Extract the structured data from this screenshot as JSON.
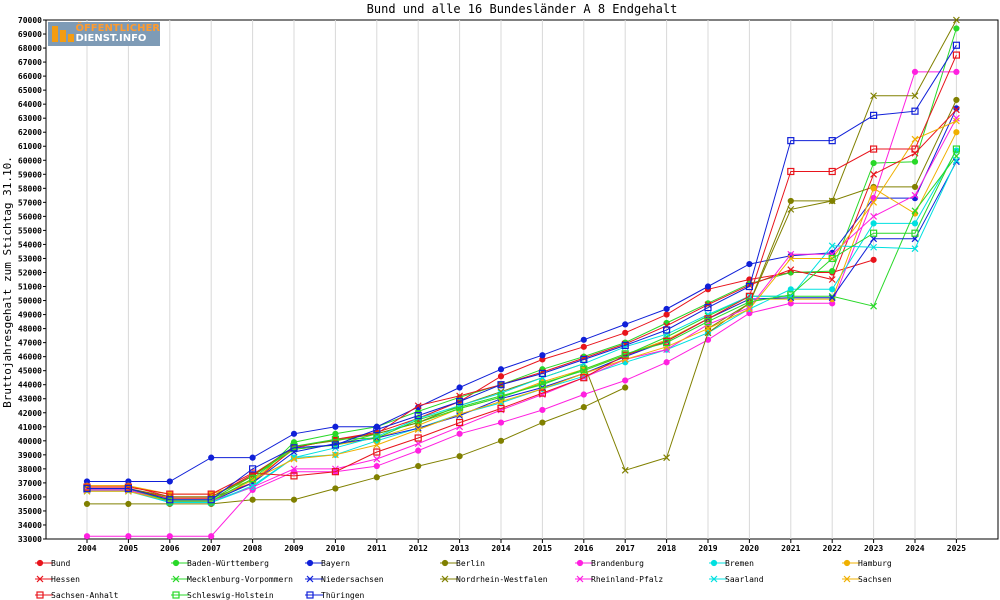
{
  "logo": {
    "line1": "ÖFFENTLICHER",
    "line2": "DIENST.INFO"
  },
  "chart_data": {
    "type": "line",
    "title": "Bund und alle 16 Bundesländer A 8 Endgehalt",
    "xlabel": "",
    "ylabel": "Bruttojahresgehalt zum Stichtag 31.10.",
    "ylim": [
      33000,
      70000
    ],
    "yticks": [
      33000,
      34000,
      35000,
      36000,
      37000,
      38000,
      39000,
      40000,
      41000,
      42000,
      43000,
      44000,
      45000,
      46000,
      47000,
      48000,
      49000,
      50000,
      51000,
      52000,
      53000,
      54000,
      55000,
      56000,
      57000,
      58000,
      59000,
      60000,
      61000,
      62000,
      63000,
      64000,
      65000,
      66000,
      67000,
      68000,
      69000,
      70000
    ],
    "x": [
      "2004",
      "2005",
      "2006",
      "2007",
      "2008",
      "2009",
      "2010",
      "2011",
      "2012",
      "2013",
      "2014",
      "2015",
      "2016",
      "2017",
      "2018",
      "2019",
      "2020",
      "2021",
      "2022",
      "2023",
      "2024",
      "2025"
    ],
    "grid": "vertical",
    "legend_position": "bottom",
    "series": [
      {
        "name": "Bund",
        "color": "#e8141c",
        "marker": "dot",
        "values": [
          36800,
          36800,
          36000,
          36000,
          37600,
          39500,
          40100,
          40600,
          41600,
          42800,
          44600,
          45800,
          46700,
          47700,
          49000,
          50800,
          51500,
          52000,
          52000,
          52900,
          null,
          null
        ]
      },
      {
        "name": "Baden-Württemberg",
        "color": "#28d828",
        "marker": "dot",
        "values": [
          36500,
          36500,
          35700,
          35700,
          37000,
          39900,
          40500,
          41000,
          42100,
          43100,
          44000,
          45100,
          46000,
          47000,
          48400,
          49800,
          51200,
          52000,
          52100,
          59800,
          59900,
          69400
        ]
      },
      {
        "name": "Bayern",
        "color": "#1020d8",
        "marker": "dot",
        "values": [
          37100,
          37100,
          37100,
          38800,
          38800,
          40500,
          41000,
          41000,
          42400,
          43800,
          45100,
          46100,
          47200,
          48300,
          49400,
          51000,
          52600,
          53200,
          53400,
          57300,
          57300,
          63700
        ]
      },
      {
        "name": "Berlin",
        "color": "#808000",
        "marker": "dot",
        "values": [
          35500,
          35500,
          35500,
          35500,
          35800,
          35800,
          36600,
          37400,
          38200,
          38900,
          40000,
          41300,
          42400,
          43800,
          null,
          48000,
          49800,
          57100,
          57100,
          58100,
          58100,
          64300
        ]
      },
      {
        "name": "Brandenburg",
        "color": "#ff20e0",
        "marker": "dot",
        "values": [
          33200,
          33200,
          33200,
          33200,
          36500,
          37800,
          37800,
          38200,
          39300,
          40500,
          41300,
          42200,
          43300,
          44300,
          45600,
          47200,
          49100,
          49800,
          49800,
          57300,
          66300,
          66300
        ]
      },
      {
        "name": "Bremen",
        "color": "#00e0e0",
        "marker": "dot",
        "values": [
          36500,
          36500,
          35600,
          35600,
          36700,
          38800,
          39000,
          40000,
          40900,
          41900,
          42700,
          43700,
          44600,
          45600,
          46500,
          47700,
          49400,
          50800,
          50800,
          55500,
          55500,
          60700
        ]
      },
      {
        "name": "Hamburg",
        "color": "#f0b000",
        "marker": "dot",
        "values": [
          36800,
          36800,
          36200,
          36200,
          37200,
          39400,
          39700,
          40200,
          41100,
          42300,
          43100,
          44200,
          45100,
          46100,
          47200,
          48700,
          50100,
          50100,
          50100,
          58000,
          56200,
          62000
        ]
      },
      {
        "name": "Hessen",
        "color": "#e8141c",
        "marker": "x",
        "values": [
          36600,
          36600,
          35900,
          35900,
          37000,
          39500,
          40100,
          40500,
          42500,
          43200,
          44000,
          44900,
          45900,
          46900,
          48200,
          49700,
          51100,
          52200,
          51500,
          59000,
          60500,
          63600
        ]
      },
      {
        "name": "Mecklenburg-Vorpommern",
        "color": "#28d828",
        "marker": "x",
        "values": [
          36500,
          36500,
          35800,
          35800,
          37500,
          39400,
          39700,
          40500,
          41300,
          42300,
          43100,
          44100,
          45000,
          46100,
          47400,
          48900,
          50300,
          50300,
          50300,
          49600,
          56400,
          60300
        ]
      },
      {
        "name": "Niedersachsen",
        "color": "#1020d8",
        "marker": "x",
        "values": [
          36500,
          36500,
          35700,
          35700,
          37000,
          39200,
          39800,
          40200,
          40900,
          41800,
          43000,
          43800,
          44800,
          46000,
          47100,
          48700,
          50100,
          50200,
          50200,
          54400,
          54400,
          59900
        ]
      },
      {
        "name": "Nordrhein-Westfalen",
        "color": "#808000",
        "marker": "x",
        "values": [
          36600,
          36600,
          36000,
          36000,
          37500,
          39600,
          40000,
          40500,
          41300,
          42500,
          43500,
          44500,
          45500,
          37900,
          38800,
          47700,
          49800,
          56500,
          57100,
          64600,
          64600,
          70000
        ]
      },
      {
        "name": "Rheinland-Pfalz",
        "color": "#ff20e0",
        "marker": "x",
        "values": [
          36500,
          36500,
          35700,
          35700,
          36700,
          38000,
          38000,
          38700,
          39800,
          41000,
          42200,
          43300,
          44500,
          45800,
          46500,
          48300,
          49500,
          53300,
          53300,
          56000,
          57500,
          63000
        ]
      },
      {
        "name": "Saarland",
        "color": "#00e0e0",
        "marker": "x",
        "values": [
          36400,
          36400,
          35600,
          35600,
          36800,
          38800,
          39500,
          40300,
          41600,
          42500,
          43400,
          44500,
          45500,
          46700,
          47600,
          49000,
          50300,
          50300,
          53900,
          53800,
          53700,
          60000
        ]
      },
      {
        "name": "Sachsen",
        "color": "#f0b000",
        "marker": "x",
        "values": [
          36400,
          36400,
          35700,
          35700,
          37200,
          38700,
          39000,
          39700,
          40800,
          41900,
          42800,
          43700,
          44800,
          45800,
          46700,
          48000,
          49400,
          53000,
          53000,
          57000,
          61500,
          62800
        ]
      },
      {
        "name": "Sachsen-Anhalt",
        "color": "#e8141c",
        "marker": "square",
        "values": [
          36700,
          36700,
          36200,
          36200,
          37700,
          37500,
          37800,
          39200,
          40200,
          41300,
          42300,
          43400,
          44500,
          46100,
          47100,
          48700,
          50300,
          59200,
          59200,
          60800,
          60800,
          67500
        ]
      },
      {
        "name": "Schleswig-Holstein",
        "color": "#28d828",
        "marker": "square",
        "values": [
          36600,
          36600,
          35700,
          35700,
          37300,
          39600,
          40100,
          40200,
          41500,
          42400,
          43200,
          44000,
          45100,
          46200,
          47000,
          48500,
          49900,
          50400,
          53000,
          54800,
          54800,
          60800
        ]
      },
      {
        "name": "Thüringen",
        "color": "#1020d8",
        "marker": "square",
        "values": [
          36600,
          36600,
          35800,
          35800,
          38000,
          39500,
          39700,
          40800,
          41800,
          42800,
          44000,
          44800,
          45800,
          46800,
          47900,
          49500,
          51000,
          61400,
          61400,
          63200,
          63500,
          68200
        ]
      }
    ]
  }
}
